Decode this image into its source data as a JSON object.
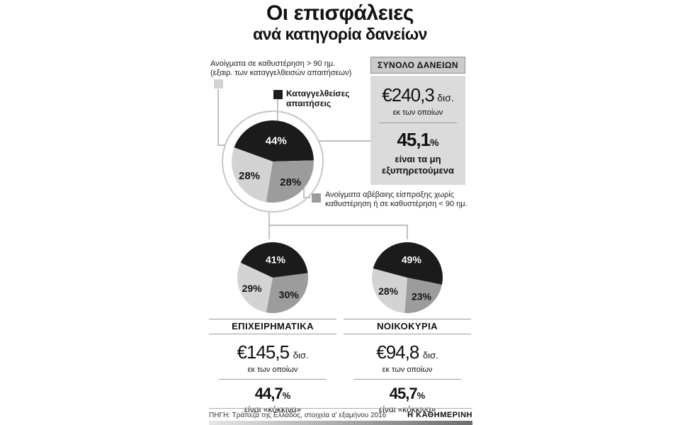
{
  "title": {
    "line1": "Οι επισφάλειες",
    "line2": "ανά κατηγορία δανείων"
  },
  "colors": {
    "black": "#1b1b1b",
    "gray": "#9c9c9c",
    "light_gray": "#d3d3d3"
  },
  "legend": {
    "overdue": {
      "line1": "Ανοίγματα σε καθυστέρηση > 90 ημ.",
      "line2": "(εξαιρ. των καταγγελθεισών απαιτήσεων)",
      "color": "light_gray"
    },
    "denounced": {
      "line1": "Καταγγελθείσες",
      "line2": "απαιτήσεις",
      "color": "black"
    },
    "uncertain": {
      "line1": "Ανοίγματα αβέβαιης είσπραξης χωρίς",
      "line2": "καθυστέρηση ή σε καθυστέρηση < 90 ημ.",
      "color": "gray"
    }
  },
  "total_box": {
    "header": "ΣΥΝΟΛΟ ΔΑΝΕΙΩΝ",
    "amount": "€240,3",
    "amount_unit": "δισ.",
    "of_which": "εκ των οποίων",
    "pct": "45,1",
    "pct_unit": "%",
    "note_line1": "είναι τα μη",
    "note_line2": "εξυπηρετούμενα"
  },
  "chart_data": [
    {
      "type": "pie",
      "title": "ΣΥΝΟΛΟ ΔΑΝΕΙΩΝ",
      "total_eur_bn": 240.3,
      "red_pct": 45.1,
      "start_deg": -70,
      "slices": [
        {
          "label": "Καταγγελθείσες απαιτήσεις",
          "value": 44,
          "color": "black"
        },
        {
          "label": "Ανοίγματα αβέβαιης είσπραξης χωρίς καθυστέρηση ή σε καθυστέρηση < 90 ημ.",
          "value": 28,
          "color": "gray"
        },
        {
          "label": "Ανοίγματα σε καθυστέρηση > 90 ημ. (εξαιρ. των καταγγελθεισών απαιτήσεων)",
          "value": 28,
          "color": "light_gray"
        }
      ]
    },
    {
      "type": "pie",
      "title": "ΕΠΙΧΕΙΡΗΜΑΤΙΚΑ",
      "total_eur_bn": 145.5,
      "red_pct": 44.7,
      "start_deg": -65,
      "slices": [
        {
          "label": "Καταγγελθείσες απαιτήσεις",
          "value": 41,
          "color": "black"
        },
        {
          "label": "Ανοίγματα αβέβαιης είσπραξης χωρίς καθυστέρηση ή σε καθυστέρηση < 90 ημ.",
          "value": 30,
          "color": "gray"
        },
        {
          "label": "Ανοίγματα σε καθυστέρηση > 90 ημ. (εξαιρ. των καταγγελθεισών απαιτήσεων)",
          "value": 29,
          "color": "light_gray"
        }
      ]
    },
    {
      "type": "pie",
      "title": "ΝΟΙΚΟΚΥΡΙΑ",
      "total_eur_bn": 94.8,
      "red_pct": 45.7,
      "start_deg": -75,
      "slices": [
        {
          "label": "Καταγγελθείσες απαιτήσεις",
          "value": 49,
          "color": "black"
        },
        {
          "label": "Ανοίγματα αβέβαιης είσπραξης χωρίς καθυστέρηση ή σε καθυστέρηση < 90 ημ.",
          "value": 23,
          "color": "gray"
        },
        {
          "label": "Ανοίγματα σε καθυστέρηση > 90 ημ. (εξαιρ. των καταγγελθεισών απαιτήσεων)",
          "value": 28,
          "color": "light_gray"
        }
      ]
    }
  ],
  "business": {
    "label": "ΕΠΙΧΕΙΡΗΜΑΤΙΚΑ",
    "amount": "€145,5",
    "amount_unit": "δισ.",
    "of_which": "εκ των οποίων",
    "pct": "44,7",
    "pct_unit": "%",
    "note": "είναι «κόκκινα»"
  },
  "households": {
    "label": "ΝΟΙΚΟΚΥΡΙΑ",
    "amount": "€94,8",
    "amount_unit": "δισ.",
    "of_which": "εκ των οποίων",
    "pct": "45,7",
    "pct_unit": "%",
    "note": "είναι «κόκκινα»"
  },
  "footer": {
    "source": "ΠΗΓΗ: Τράπεζα της Ελλάδος, στοιχεία α' εξαμήνου 2016",
    "brand": "Η ΚΑΘΗΜΕΡΙΝΗ"
  }
}
